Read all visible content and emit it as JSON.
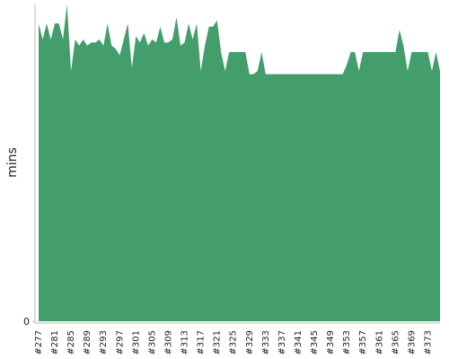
{
  "chart_data": {
    "type": "area",
    "y_label": "mins",
    "color": "#449e6c",
    "categories": [
      "#277",
      null,
      null,
      null,
      "#281",
      null,
      null,
      null,
      "#285",
      null,
      null,
      null,
      "#289",
      null,
      null,
      null,
      "#293",
      null,
      null,
      null,
      "#297",
      null,
      null,
      null,
      "#301",
      null,
      null,
      null,
      "#305",
      null,
      null,
      null,
      "#309",
      null,
      null,
      null,
      "#313",
      null,
      null,
      null,
      "#317",
      null,
      null,
      null,
      "#321",
      null,
      null,
      null,
      "#325",
      null,
      null,
      null,
      "#329",
      null,
      null,
      null,
      "#333",
      null,
      null,
      null,
      "#337",
      null,
      null,
      null,
      "#341",
      null,
      null,
      null,
      "#345",
      null,
      null,
      null,
      "#349",
      null,
      null,
      null,
      "#353",
      null,
      null,
      null,
      "#357",
      null,
      null,
      null,
      "#361",
      null,
      null,
      null,
      "#365",
      null,
      null,
      null,
      "#369",
      null,
      null,
      null,
      "#373",
      null,
      null,
      null
    ],
    "values": [
      94,
      89,
      94,
      89,
      94,
      94,
      89,
      100,
      79,
      89,
      87,
      89,
      87,
      88,
      88,
      89,
      87,
      94,
      87,
      86,
      84,
      89,
      94,
      80,
      90,
      88,
      91,
      87,
      89,
      88,
      93,
      88,
      88,
      89,
      96,
      87,
      88,
      94,
      89,
      94,
      79,
      87,
      93,
      93,
      95,
      85,
      79,
      85,
      85,
      85,
      85,
      85,
      78,
      78,
      79,
      85,
      78,
      78,
      78,
      78,
      78,
      78,
      78,
      78,
      78,
      78,
      78,
      78,
      78,
      78,
      78,
      78,
      78,
      78,
      78,
      78,
      81,
      85,
      85,
      79,
      85,
      85,
      85,
      85,
      85,
      85,
      85,
      85,
      85,
      92,
      87,
      79,
      85,
      85,
      85,
      85,
      85,
      79,
      85,
      79
    ],
    "ylim": [
      0,
      100
    ],
    "yticks": [
      0
    ]
  }
}
